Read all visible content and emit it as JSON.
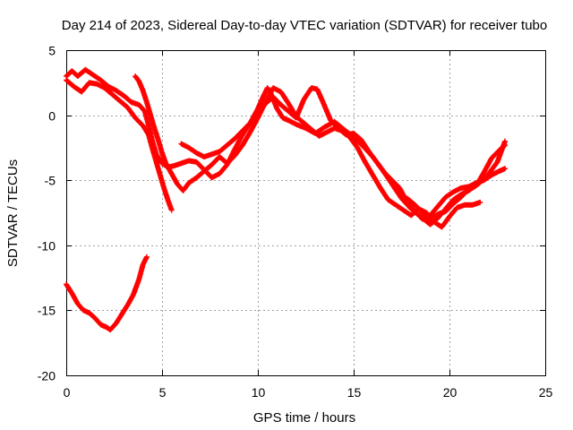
{
  "chart_data": {
    "type": "scatter",
    "title": "Day 214 of 2023, Sidereal Day-to-day VTEC variation (SDTVAR) for receiver tubo",
    "xlabel": "GPS time / hours",
    "ylabel": "SDTVAR / TECUs",
    "xlim": [
      0,
      25
    ],
    "ylim": [
      -20,
      5
    ],
    "xticks": [
      0,
      5,
      10,
      15,
      20,
      25
    ],
    "yticks": [
      -20,
      -15,
      -10,
      -5,
      0,
      5
    ],
    "xtick_labels": [
      "0",
      "5",
      "10",
      "15",
      "20",
      "25"
    ],
    "ytick_labels": [
      "-20",
      "-15",
      "-10",
      "-5",
      "0",
      "5"
    ],
    "grid": true,
    "marker": "+",
    "color": "#ff0000",
    "series": [
      {
        "name": "track-a",
        "points": [
          [
            0.0,
            3.0
          ],
          [
            0.3,
            3.4
          ],
          [
            0.6,
            3.0
          ],
          [
            1.0,
            3.5
          ],
          [
            1.4,
            3.1
          ],
          [
            1.8,
            2.7
          ],
          [
            2.2,
            2.2
          ],
          [
            2.6,
            1.9
          ],
          [
            3.0,
            1.5
          ],
          [
            3.4,
            1.0
          ],
          [
            3.8,
            0.8
          ],
          [
            4.1,
            0.3
          ],
          [
            4.3,
            -0.8
          ],
          [
            4.5,
            -2.0
          ],
          [
            4.7,
            -3.0
          ],
          [
            5.0,
            -3.7
          ],
          [
            5.3,
            -4.0
          ],
          [
            5.6,
            -3.9
          ],
          [
            6.0,
            -3.7
          ],
          [
            6.4,
            -3.5
          ],
          [
            6.8,
            -3.6
          ],
          [
            7.2,
            -4.2
          ],
          [
            7.6,
            -4.8
          ],
          [
            8.0,
            -4.5
          ],
          [
            8.4,
            -3.8
          ],
          [
            8.8,
            -2.6
          ],
          [
            9.2,
            -1.5
          ],
          [
            9.6,
            -0.6
          ],
          [
            10.0,
            0.5
          ],
          [
            10.3,
            1.5
          ],
          [
            10.5,
            2.1
          ],
          [
            10.7,
            1.6
          ],
          [
            11.0,
            0.5
          ],
          [
            11.3,
            -0.2
          ],
          [
            11.6,
            -0.4
          ],
          [
            12.0,
            -0.7
          ],
          [
            12.5,
            -1.0
          ],
          [
            13.0,
            -1.4
          ],
          [
            13.5,
            -0.9
          ],
          [
            14.0,
            -0.5
          ],
          [
            14.5,
            -1.1
          ],
          [
            15.0,
            -1.7
          ],
          [
            15.5,
            -2.4
          ],
          [
            16.0,
            -3.2
          ],
          [
            16.5,
            -4.2
          ],
          [
            17.0,
            -5.3
          ],
          [
            17.5,
            -6.4
          ],
          [
            18.0,
            -7.2
          ],
          [
            18.5,
            -7.8
          ],
          [
            19.0,
            -8.4
          ],
          [
            19.4,
            -7.9
          ],
          [
            19.8,
            -7.2
          ],
          [
            20.2,
            -6.5
          ],
          [
            20.6,
            -6.1
          ],
          [
            21.0,
            -5.8
          ],
          [
            21.5,
            -5.3
          ],
          [
            22.0,
            -4.6
          ],
          [
            22.5,
            -3.6
          ],
          [
            22.9,
            -2.0
          ]
        ]
      },
      {
        "name": "track-b",
        "points": [
          [
            0.0,
            2.7
          ],
          [
            0.4,
            2.2
          ],
          [
            0.8,
            1.8
          ],
          [
            1.2,
            2.5
          ],
          [
            1.6,
            2.4
          ],
          [
            2.0,
            2.1
          ],
          [
            2.4,
            1.6
          ],
          [
            2.8,
            1.1
          ],
          [
            3.2,
            0.6
          ],
          [
            3.6,
            -0.2
          ],
          [
            4.0,
            -0.8
          ],
          [
            4.3,
            -1.5
          ],
          [
            4.5,
            -2.6
          ],
          [
            4.7,
            -3.6
          ],
          [
            4.9,
            -4.6
          ],
          [
            5.1,
            -5.6
          ],
          [
            5.3,
            -6.5
          ],
          [
            5.5,
            -7.3
          ]
        ]
      },
      {
        "name": "track-c",
        "points": [
          [
            3.6,
            3.0
          ],
          [
            3.8,
            2.6
          ],
          [
            4.0,
            1.9
          ],
          [
            4.2,
            1.0
          ],
          [
            4.4,
            0.0
          ],
          [
            4.6,
            -1.0
          ],
          [
            4.8,
            -1.9
          ],
          [
            5.0,
            -2.9
          ],
          [
            5.2,
            -3.7
          ],
          [
            5.5,
            -4.5
          ],
          [
            5.8,
            -5.3
          ],
          [
            6.1,
            -5.8
          ],
          [
            6.4,
            -5.2
          ],
          [
            6.8,
            -4.8
          ],
          [
            7.2,
            -4.3
          ],
          [
            7.6,
            -3.8
          ],
          [
            8.0,
            -3.2
          ],
          [
            8.4,
            -3.7
          ],
          [
            8.8,
            -3.1
          ],
          [
            9.2,
            -2.3
          ],
          [
            9.6,
            -1.3
          ],
          [
            10.0,
            -0.2
          ],
          [
            10.4,
            1.0
          ],
          [
            10.8,
            2.1
          ],
          [
            11.2,
            1.8
          ],
          [
            11.6,
            0.9
          ],
          [
            12.0,
            -0.1
          ],
          [
            12.4,
            -0.6
          ],
          [
            12.8,
            -1.1
          ],
          [
            13.2,
            -1.6
          ],
          [
            13.6,
            -1.3
          ],
          [
            14.0,
            -1.0
          ],
          [
            14.4,
            -1.2
          ],
          [
            14.8,
            -1.7
          ],
          [
            15.2,
            -2.5
          ],
          [
            15.6,
            -3.6
          ],
          [
            16.0,
            -4.6
          ],
          [
            16.4,
            -5.6
          ],
          [
            16.8,
            -6.5
          ],
          [
            17.2,
            -6.9
          ],
          [
            17.6,
            -7.3
          ],
          [
            18.0,
            -7.7
          ],
          [
            18.4,
            -7.2
          ],
          [
            18.8,
            -7.5
          ],
          [
            19.2,
            -8.2
          ],
          [
            19.6,
            -8.6
          ],
          [
            20.0,
            -7.8
          ],
          [
            20.4,
            -7.1
          ],
          [
            20.8,
            -6.9
          ],
          [
            21.2,
            -6.9
          ],
          [
            21.6,
            -6.7
          ]
        ]
      },
      {
        "name": "track-d",
        "points": [
          [
            6.0,
            -2.2
          ],
          [
            6.4,
            -2.5
          ],
          [
            6.8,
            -2.9
          ],
          [
            7.2,
            -3.2
          ],
          [
            7.6,
            -3.0
          ],
          [
            8.0,
            -2.8
          ],
          [
            8.4,
            -2.3
          ],
          [
            8.8,
            -1.8
          ],
          [
            9.2,
            -1.2
          ],
          [
            9.6,
            -0.6
          ],
          [
            10.0,
            0.1
          ],
          [
            10.4,
            0.9
          ],
          [
            10.8,
            1.4
          ],
          [
            11.2,
            0.8
          ],
          [
            11.6,
            0.3
          ],
          [
            12.0,
            -0.2
          ],
          [
            12.4,
            1.2
          ],
          [
            12.8,
            2.1
          ],
          [
            13.1,
            2.0
          ],
          [
            13.4,
            1.0
          ],
          [
            13.8,
            -0.4
          ],
          [
            14.2,
            -1.0
          ],
          [
            14.6,
            -1.5
          ],
          [
            15.0,
            -1.4
          ],
          [
            15.4,
            -1.9
          ],
          [
            15.8,
            -2.8
          ],
          [
            16.2,
            -3.6
          ],
          [
            16.6,
            -4.4
          ],
          [
            17.0,
            -5.0
          ],
          [
            17.4,
            -5.6
          ],
          [
            17.8,
            -6.7
          ],
          [
            18.2,
            -7.4
          ],
          [
            18.6,
            -8.0
          ],
          [
            19.0,
            -7.7
          ],
          [
            19.4,
            -7.0
          ],
          [
            19.8,
            -6.3
          ],
          [
            20.2,
            -5.9
          ],
          [
            20.6,
            -5.6
          ],
          [
            21.0,
            -5.5
          ],
          [
            21.4,
            -5.2
          ],
          [
            21.8,
            -5.0
          ],
          [
            22.2,
            -4.6
          ],
          [
            22.6,
            -4.3
          ],
          [
            22.9,
            -4.1
          ]
        ]
      },
      {
        "name": "track-e",
        "points": [
          [
            17.8,
            -6.4
          ],
          [
            18.2,
            -6.9
          ],
          [
            18.6,
            -7.5
          ],
          [
            19.0,
            -8.0
          ],
          [
            19.4,
            -7.6
          ],
          [
            19.8,
            -7.4
          ],
          [
            20.2,
            -6.8
          ],
          [
            20.6,
            -6.3
          ],
          [
            21.0,
            -5.7
          ],
          [
            21.4,
            -5.4
          ],
          [
            21.8,
            -4.4
          ],
          [
            22.2,
            -3.3
          ],
          [
            22.6,
            -2.7
          ],
          [
            22.9,
            -2.3
          ]
        ]
      },
      {
        "name": "track-f",
        "points": [
          [
            0.0,
            -13.0
          ],
          [
            0.3,
            -13.7
          ],
          [
            0.6,
            -14.5
          ],
          [
            0.9,
            -15.0
          ],
          [
            1.2,
            -15.2
          ],
          [
            1.5,
            -15.6
          ],
          [
            1.8,
            -16.1
          ],
          [
            2.1,
            -16.3
          ],
          [
            2.3,
            -16.5
          ],
          [
            2.6,
            -16.0
          ],
          [
            2.9,
            -15.3
          ],
          [
            3.2,
            -14.6
          ],
          [
            3.5,
            -13.8
          ],
          [
            3.8,
            -12.6
          ],
          [
            4.0,
            -11.5
          ],
          [
            4.2,
            -10.9
          ]
        ]
      }
    ]
  }
}
